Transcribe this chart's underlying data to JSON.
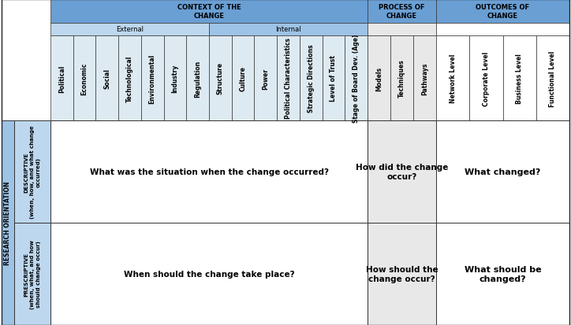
{
  "header_color_dark": "#6A9FD4",
  "header_color_mid": "#9DC3E6",
  "header_color_light": "#BDD7EE",
  "header_color_very_light": "#DEEAF1",
  "process_outcomes_col_bg": "#E8E8E8",
  "body_bg": "#FFFFFF",
  "row_side_bg": "#9DC3E6",
  "row_side_bg2": "#BDD7EE",
  "context_columns_external": [
    "Political",
    "Economic",
    "Social",
    "Technological",
    "Environmental",
    "Industry",
    "Regulation"
  ],
  "context_columns_internal": [
    "Structure",
    "Culture",
    "Power",
    "Political Characteristics",
    "Strategic Directions",
    "Level of Trust",
    "Stage of Board Dev. (Age)"
  ],
  "process_columns": [
    "Models",
    "Techniques",
    "Pathways"
  ],
  "outcomes_columns": [
    "Network Level",
    "Corporate Level",
    "Business Level",
    "Functional Level"
  ],
  "row1_label_main": "RESEARCH ORIENTATION",
  "row1_label_sub1": "DESCRIPTIVE\n(when, how, and what change\noccurred)",
  "row1_label_sub2": "PRESCRIPTIVE\n(when, what, and how\nshould change occur)",
  "cell_desc_context": "What was the situation when the change occurred?",
  "cell_desc_process": "How did the change\noccur?",
  "cell_desc_outcomes": "What changed?",
  "cell_presc_context": "When should the change take place?",
  "cell_presc_process": "How should the\nchange occur?",
  "cell_presc_outcomes": "What should be\nchanged?"
}
